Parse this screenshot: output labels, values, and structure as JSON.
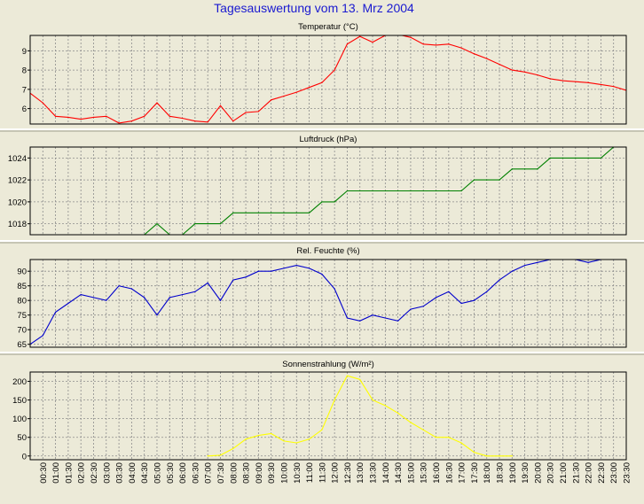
{
  "title": "Tagesauswertung vom 13. Mrz 2004",
  "colors": {
    "background": "#ecead8",
    "title": "#1a1ad0",
    "grid": "#8c8c8c",
    "frame": "#000000",
    "separator": "#ffffff"
  },
  "time_labels": [
    "00:30",
    "01:00",
    "01:30",
    "02:00",
    "02:30",
    "03:00",
    "03:30",
    "04:00",
    "04:30",
    "05:00",
    "05:30",
    "06:00",
    "06:30",
    "07:00",
    "07:30",
    "08:00",
    "08:30",
    "09:00",
    "09:30",
    "10:00",
    "10:30",
    "11:00",
    "11:30",
    "12:00",
    "12:30",
    "13:00",
    "13:30",
    "14:00",
    "14:30",
    "15:00",
    "15:30",
    "16:00",
    "16:30",
    "17:00",
    "17:30",
    "18:00",
    "18:30",
    "19:00",
    "19:30",
    "20:00",
    "20:30",
    "21:00",
    "21:30",
    "22:00",
    "22:30",
    "23:00",
    "23:30"
  ],
  "chart_data": [
    {
      "type": "line",
      "title": "Temperatur (°C)",
      "color": "#ff0000",
      "ylim": [
        5.2,
        9.8
      ],
      "yticks": [
        6,
        7,
        8,
        9
      ],
      "xlim": [
        0,
        23.5
      ],
      "grid": true,
      "x": [
        0,
        0.5,
        1,
        1.5,
        2,
        2.5,
        3,
        3.5,
        4,
        4.5,
        5,
        5.5,
        6,
        6.5,
        7,
        7.5,
        8,
        8.5,
        9,
        9.5,
        10,
        10.5,
        11,
        11.5,
        12,
        12.5,
        13,
        13.5,
        14,
        14.5,
        15,
        15.5,
        16,
        16.5,
        17,
        17.5,
        18,
        18.5,
        19,
        19.5,
        20,
        20.5,
        21,
        21.5,
        22,
        22.5,
        23,
        23.5
      ],
      "values": [
        6.8,
        6.3,
        5.6,
        5.55,
        5.45,
        5.55,
        5.6,
        5.25,
        5.35,
        5.6,
        6.3,
        5.6,
        5.5,
        5.35,
        5.3,
        6.15,
        5.35,
        5.8,
        5.85,
        6.45,
        6.65,
        6.85,
        7.1,
        7.35,
        8.0,
        9.35,
        9.75,
        9.45,
        9.8,
        9.85,
        9.7,
        9.35,
        9.3,
        9.35,
        9.15,
        8.85,
        8.6,
        8.3,
        8.0,
        7.9,
        7.75,
        7.55,
        7.45,
        7.4,
        7.35,
        7.25,
        7.15,
        6.95
      ]
    },
    {
      "type": "line",
      "title": "Luftdruck (hPa)",
      "color": "#008000",
      "ylim": [
        1017,
        1025
      ],
      "yticks": [
        1018,
        1020,
        1022,
        1024
      ],
      "xlim": [
        0,
        23.5
      ],
      "grid": true,
      "x": [
        0,
        0.5,
        1,
        1.5,
        2,
        2.5,
        3,
        3.5,
        4,
        4.5,
        5,
        5.5,
        6,
        6.5,
        7,
        7.5,
        8,
        8.5,
        9,
        9.5,
        10,
        10.5,
        11,
        11.5,
        12,
        12.5,
        13,
        13.5,
        14,
        14.5,
        15,
        15.5,
        16,
        16.5,
        17,
        17.5,
        18,
        18.5,
        19,
        19.5,
        20,
        20.5,
        21,
        21.5,
        22,
        22.5,
        23
      ],
      "values": [
        1017,
        1017,
        1017,
        1017,
        1017,
        1017,
        1017,
        1017,
        1017,
        1017,
        1018,
        1017,
        1017,
        1018,
        1018,
        1018,
        1019,
        1019,
        1019,
        1019,
        1019,
        1019,
        1019,
        1020,
        1020,
        1021,
        1021,
        1021,
        1021,
        1021,
        1021,
        1021,
        1021,
        1021,
        1021,
        1022,
        1022,
        1022,
        1023,
        1023,
        1023,
        1024,
        1024,
        1024,
        1024,
        1024,
        1025
      ]
    },
    {
      "type": "line",
      "title": "Rel. Feuchte (%)",
      "color": "#0000cc",
      "ylim": [
        64,
        94
      ],
      "yticks": [
        65,
        70,
        75,
        80,
        85,
        90
      ],
      "xlim": [
        0,
        23.5
      ],
      "grid": true,
      "x": [
        0,
        0.5,
        1,
        1.5,
        2,
        2.5,
        3,
        3.5,
        4,
        4.5,
        5,
        5.5,
        6,
        6.5,
        7,
        7.5,
        8,
        8.5,
        9,
        9.5,
        10,
        10.5,
        11,
        11.5,
        12,
        12.5,
        13,
        13.5,
        14,
        14.5,
        15,
        15.5,
        16,
        16.5,
        17,
        17.5,
        18,
        18.5,
        19,
        19.5,
        20,
        20.5,
        21,
        21.5,
        22,
        22.5,
        23
      ],
      "values": [
        65,
        68,
        76,
        79,
        82,
        81,
        80,
        85,
        84,
        81,
        75,
        81,
        82,
        83,
        86,
        80,
        87,
        88,
        90,
        90,
        91,
        92,
        91,
        89,
        84,
        74,
        73,
        75,
        74,
        73,
        77,
        78,
        81,
        83,
        79,
        80,
        83,
        87,
        90,
        92,
        93,
        94,
        94,
        94,
        93,
        94,
        94
      ]
    },
    {
      "type": "line",
      "title": "Sonnenstrahlung (W/m²)",
      "color": "#ffff00",
      "ylim": [
        -10,
        225
      ],
      "yticks": [
        0,
        50,
        100,
        150,
        200
      ],
      "xlim": [
        0,
        23.5
      ],
      "grid": true,
      "x": [
        7,
        7.5,
        8,
        8.5,
        9,
        9.5,
        10,
        10.5,
        11,
        11.5,
        12,
        12.5,
        13,
        13.5,
        14,
        14.5,
        15,
        15.5,
        16,
        16.5,
        17,
        17.5,
        18,
        18.5,
        19
      ],
      "values": [
        0,
        2,
        20,
        45,
        55,
        60,
        40,
        35,
        45,
        70,
        150,
        215,
        205,
        150,
        135,
        115,
        90,
        70,
        50,
        50,
        35,
        10,
        0,
        0,
        0
      ]
    }
  ]
}
